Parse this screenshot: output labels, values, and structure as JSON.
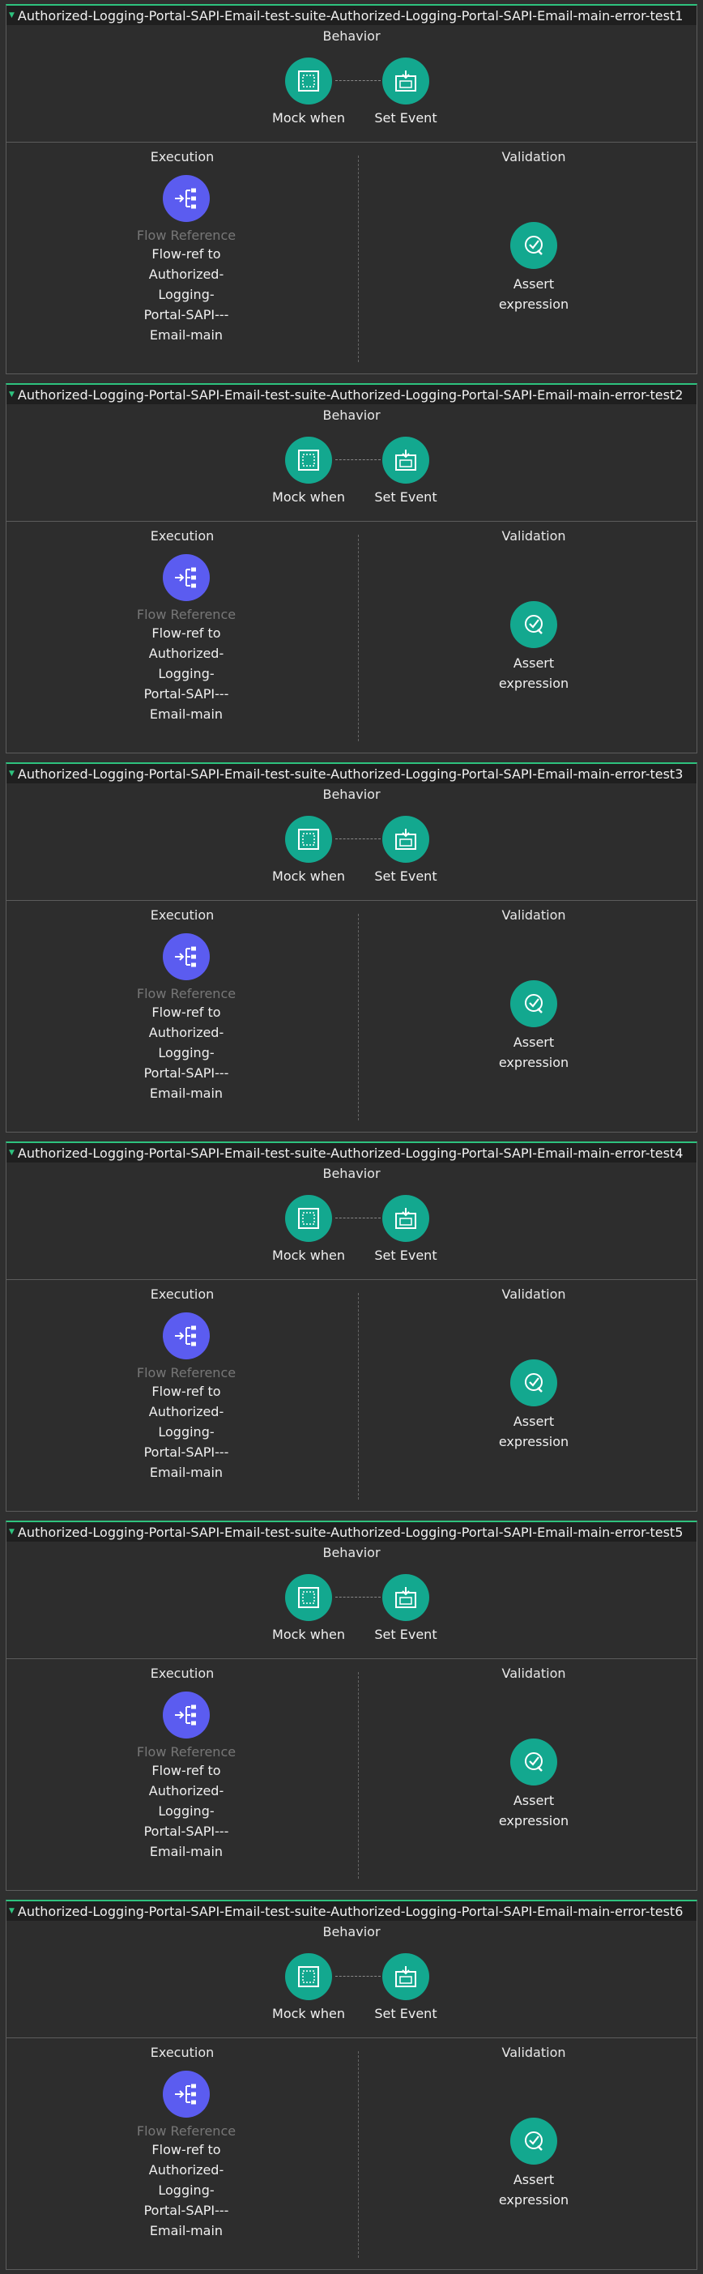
{
  "tests": [
    {
      "title": "Authorized-Logging-Portal-SAPI-Email-test-suite-Authorized-Logging-Portal-SAPI-Email-main-error-test1",
      "behavior": {
        "title": "Behavior",
        "nodes": [
          {
            "label": "Mock when",
            "icon": "mock-when-icon"
          },
          {
            "label": "Set Event",
            "icon": "set-event-icon"
          }
        ]
      },
      "execution": {
        "title": "Execution",
        "node": {
          "type": "Flow Reference",
          "lines": [
            "Flow-ref to",
            "Authorized-",
            "Logging-",
            "Portal-SAPI---",
            "Email-main"
          ],
          "icon": "flow-reference-icon"
        }
      },
      "validation": {
        "title": "Validation",
        "node": {
          "lines": [
            "Assert",
            "expression"
          ],
          "icon": "assert-expression-icon"
        }
      }
    },
    {
      "title": "Authorized-Logging-Portal-SAPI-Email-test-suite-Authorized-Logging-Portal-SAPI-Email-main-error-test2",
      "behavior": {
        "title": "Behavior",
        "nodes": [
          {
            "label": "Mock when",
            "icon": "mock-when-icon"
          },
          {
            "label": "Set Event",
            "icon": "set-event-icon"
          }
        ]
      },
      "execution": {
        "title": "Execution",
        "node": {
          "type": "Flow Reference",
          "lines": [
            "Flow-ref to",
            "Authorized-",
            "Logging-",
            "Portal-SAPI---",
            "Email-main"
          ],
          "icon": "flow-reference-icon"
        }
      },
      "validation": {
        "title": "Validation",
        "node": {
          "lines": [
            "Assert",
            "expression"
          ],
          "icon": "assert-expression-icon"
        }
      }
    },
    {
      "title": "Authorized-Logging-Portal-SAPI-Email-test-suite-Authorized-Logging-Portal-SAPI-Email-main-error-test3",
      "behavior": {
        "title": "Behavior",
        "nodes": [
          {
            "label": "Mock when",
            "icon": "mock-when-icon"
          },
          {
            "label": "Set Event",
            "icon": "set-event-icon"
          }
        ]
      },
      "execution": {
        "title": "Execution",
        "node": {
          "type": "Flow Reference",
          "lines": [
            "Flow-ref to",
            "Authorized-",
            "Logging-",
            "Portal-SAPI---",
            "Email-main"
          ],
          "icon": "flow-reference-icon"
        }
      },
      "validation": {
        "title": "Validation",
        "node": {
          "lines": [
            "Assert",
            "expression"
          ],
          "icon": "assert-expression-icon"
        }
      }
    },
    {
      "title": "Authorized-Logging-Portal-SAPI-Email-test-suite-Authorized-Logging-Portal-SAPI-Email-main-error-test4",
      "behavior": {
        "title": "Behavior",
        "nodes": [
          {
            "label": "Mock when",
            "icon": "mock-when-icon"
          },
          {
            "label": "Set Event",
            "icon": "set-event-icon"
          }
        ]
      },
      "execution": {
        "title": "Execution",
        "node": {
          "type": "Flow Reference",
          "lines": [
            "Flow-ref to",
            "Authorized-",
            "Logging-",
            "Portal-SAPI---",
            "Email-main"
          ],
          "icon": "flow-reference-icon"
        }
      },
      "validation": {
        "title": "Validation",
        "node": {
          "lines": [
            "Assert",
            "expression"
          ],
          "icon": "assert-expression-icon"
        }
      }
    },
    {
      "title": "Authorized-Logging-Portal-SAPI-Email-test-suite-Authorized-Logging-Portal-SAPI-Email-main-error-test5",
      "behavior": {
        "title": "Behavior",
        "nodes": [
          {
            "label": "Mock when",
            "icon": "mock-when-icon"
          },
          {
            "label": "Set Event",
            "icon": "set-event-icon"
          }
        ]
      },
      "execution": {
        "title": "Execution",
        "node": {
          "type": "Flow Reference",
          "lines": [
            "Flow-ref to",
            "Authorized-",
            "Logging-",
            "Portal-SAPI---",
            "Email-main"
          ],
          "icon": "flow-reference-icon"
        }
      },
      "validation": {
        "title": "Validation",
        "node": {
          "lines": [
            "Assert",
            "expression"
          ],
          "icon": "assert-expression-icon"
        }
      }
    },
    {
      "title": "Authorized-Logging-Portal-SAPI-Email-test-suite-Authorized-Logging-Portal-SAPI-Email-main-error-test6",
      "behavior": {
        "title": "Behavior",
        "nodes": [
          {
            "label": "Mock when",
            "icon": "mock-when-icon"
          },
          {
            "label": "Set Event",
            "icon": "set-event-icon"
          }
        ]
      },
      "execution": {
        "title": "Execution",
        "node": {
          "type": "Flow Reference",
          "lines": [
            "Flow-ref to",
            "Authorized-",
            "Logging-",
            "Portal-SAPI---",
            "Email-main"
          ],
          "icon": "flow-reference-icon"
        }
      },
      "validation": {
        "title": "Validation",
        "node": {
          "lines": [
            "Assert",
            "expression"
          ],
          "icon": "assert-expression-icon"
        }
      }
    }
  ],
  "colors": {
    "accent": "#2ec27e",
    "component": "#13a88f",
    "flow_reference": "#5b5cf0",
    "background": "#2d2d2d"
  }
}
